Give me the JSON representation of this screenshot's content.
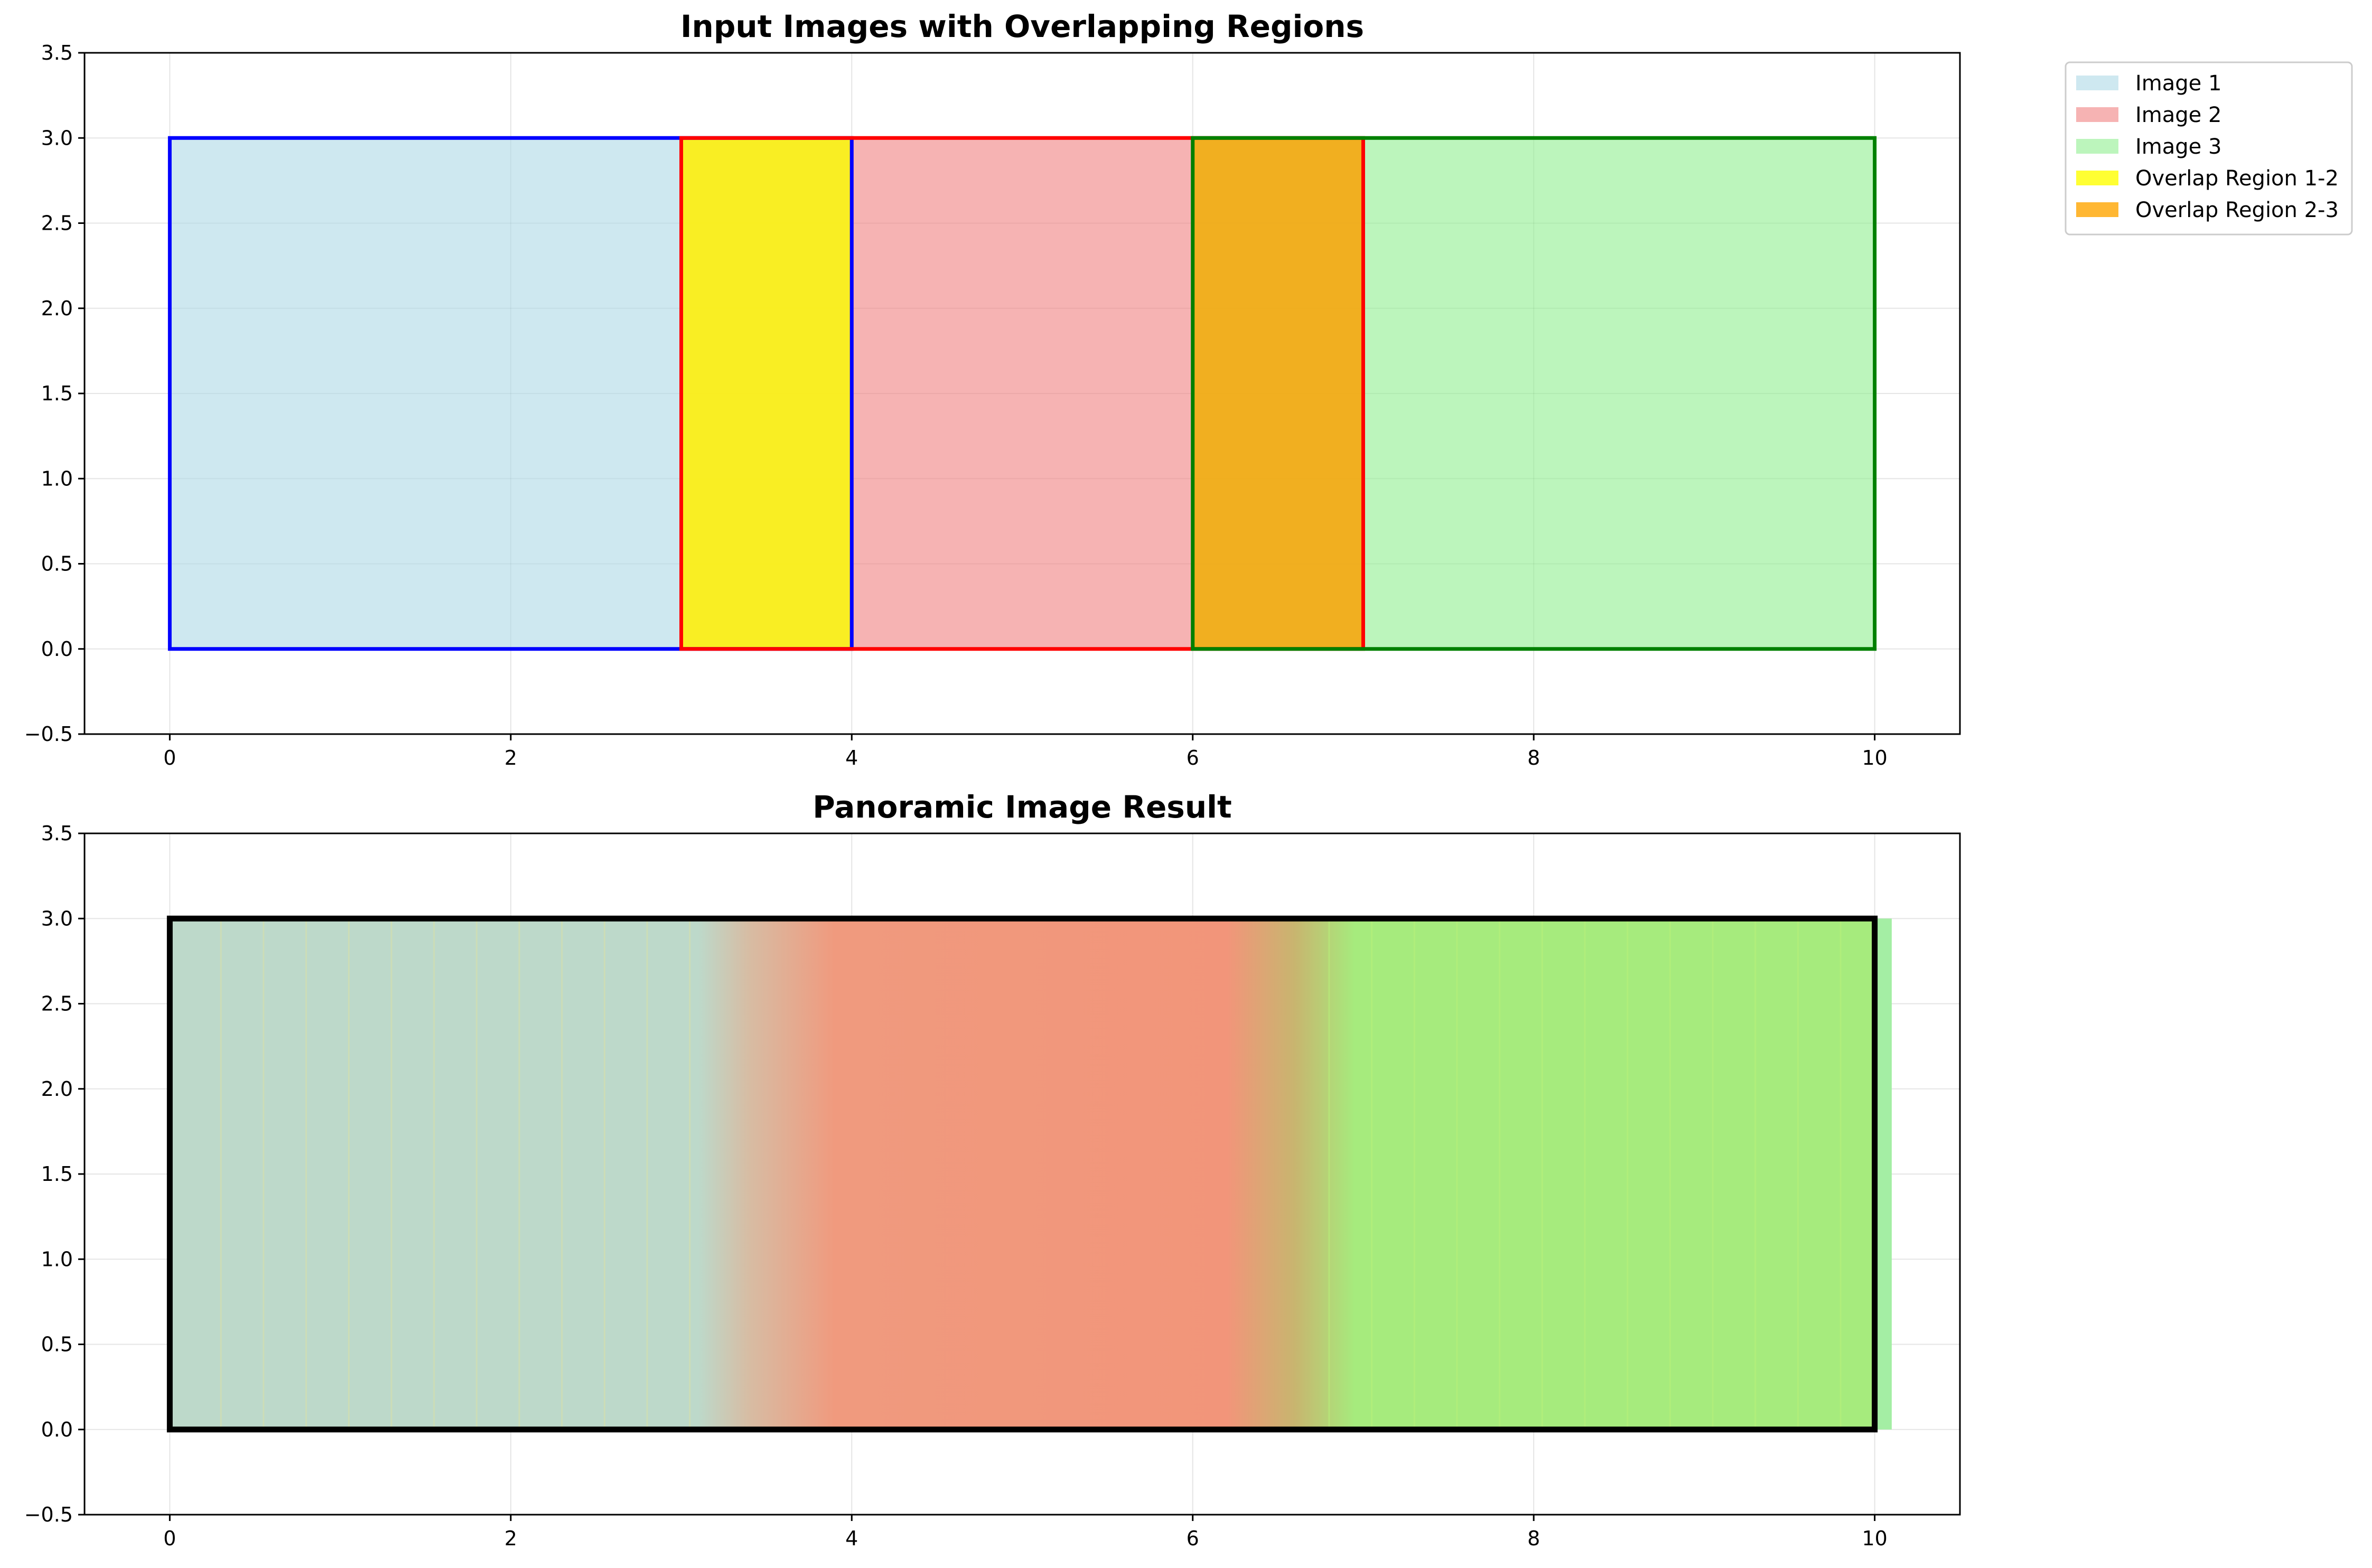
{
  "chart_data": [
    {
      "type": "area",
      "title": "Input Images with Overlapping Regions",
      "xlabel": "",
      "ylabel": "",
      "xlim": [
        -0.5,
        10.5
      ],
      "ylim": [
        -0.5,
        3.5
      ],
      "xticks": [
        0,
        2,
        4,
        6,
        8,
        10
      ],
      "yticks": [
        -0.5,
        0.0,
        0.5,
        1.0,
        1.5,
        2.0,
        2.5,
        3.0,
        3.5
      ],
      "ytick_labels": [
        "−0.5",
        "0.0",
        "0.5",
        "1.0",
        "1.5",
        "2.0",
        "2.5",
        "3.0",
        "3.5"
      ],
      "grid": true,
      "legend_position": "outside upper right",
      "series": [
        {
          "name": "Image 1",
          "x_range": [
            0,
            4
          ],
          "y_range": [
            0,
            3
          ],
          "fill": "#add8e6",
          "fill_alpha": 0.6,
          "edge": "#0000ff"
        },
        {
          "name": "Image 2",
          "x_range": [
            3,
            7
          ],
          "y_range": [
            0,
            3
          ],
          "fill": "#f08080",
          "fill_alpha": 0.6,
          "edge": "#ff0000"
        },
        {
          "name": "Image 3",
          "x_range": [
            6,
            10
          ],
          "y_range": [
            0,
            3
          ],
          "fill": "#90ee90",
          "fill_alpha": 0.6,
          "edge": "#008000"
        },
        {
          "name": "Overlap Region 1-2",
          "x_range": [
            3,
            4
          ],
          "y_range": [
            0,
            3
          ],
          "fill": "#ffff00",
          "fill_alpha": 0.8,
          "edge": "none"
        },
        {
          "name": "Overlap Region 2-3",
          "x_range": [
            6,
            7
          ],
          "y_range": [
            0,
            3
          ],
          "fill": "#ffa500",
          "fill_alpha": 0.8,
          "edge": "none"
        }
      ]
    },
    {
      "type": "area",
      "title": "Panoramic Image Result",
      "xlabel": "",
      "ylabel": "",
      "xlim": [
        -0.5,
        10.5
      ],
      "ylim": [
        -0.5,
        3.5
      ],
      "xticks": [
        0,
        2,
        4,
        6,
        8,
        10
      ],
      "yticks": [
        -0.5,
        0.0,
        0.5,
        1.0,
        1.5,
        2.0,
        2.5,
        3.0,
        3.5
      ],
      "ytick_labels": [
        "−0.5",
        "0.0",
        "0.5",
        "1.0",
        "1.5",
        "2.0",
        "2.5",
        "3.0",
        "3.5"
      ],
      "grid": true,
      "panorama": {
        "x_range": [
          0,
          10
        ],
        "y_range": [
          0,
          3
        ],
        "border": "#000000",
        "color_stops": [
          {
            "x": 0.0,
            "color": "#bdd9ca"
          },
          {
            "x": 3.1,
            "color": "#bdd9ca"
          },
          {
            "x": 3.4,
            "color": "#d7bca3"
          },
          {
            "x": 3.9,
            "color": "#f09a7e"
          },
          {
            "x": 6.2,
            "color": "#f2957a"
          },
          {
            "x": 6.6,
            "color": "#c8b56f"
          },
          {
            "x": 6.95,
            "color": "#a6eb7d"
          },
          {
            "x": 10.0,
            "color": "#a6eb7d"
          }
        ],
        "overhang": {
          "x_range": [
            10.0,
            10.1
          ],
          "color": "#a4eea4"
        }
      }
    }
  ]
}
